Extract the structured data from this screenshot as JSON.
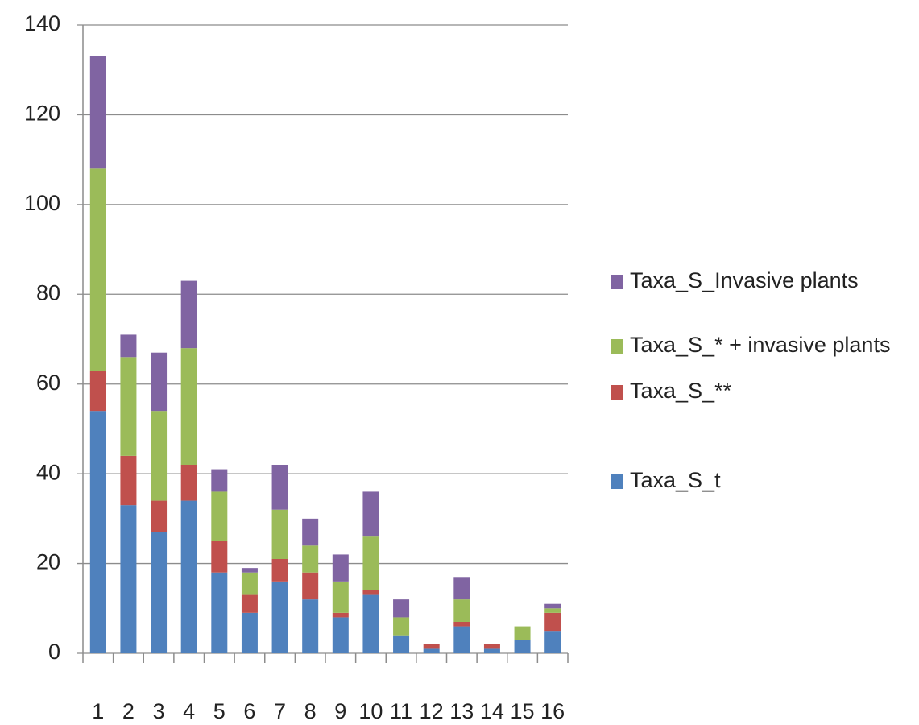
{
  "chart_data": {
    "type": "stacked-bar",
    "categories": [
      "1",
      "2",
      "3",
      "4",
      "5",
      "6",
      "7",
      "8",
      "9",
      "10",
      "11",
      "12",
      "13",
      "14",
      "15",
      "16"
    ],
    "series": [
      {
        "name": "Taxa_S_t",
        "color": "#4f81bd",
        "values": [
          54,
          33,
          27,
          34,
          18,
          9,
          16,
          12,
          8,
          13,
          4,
          1,
          6,
          1,
          3,
          5
        ]
      },
      {
        "name": "Taxa_S_**",
        "color": "#c0504d",
        "values": [
          9,
          11,
          7,
          8,
          7,
          4,
          5,
          6,
          1,
          1,
          0,
          1,
          1,
          1,
          0,
          4
        ]
      },
      {
        "name": "Taxa_S_* + invasive plants",
        "color": "#9bbb59",
        "values": [
          45,
          22,
          20,
          26,
          11,
          5,
          11,
          6,
          7,
          12,
          4,
          0,
          5,
          0,
          3,
          1
        ]
      },
      {
        "name": "Taxa_S_Invasive plants",
        "color": "#8064a2",
        "values": [
          25,
          5,
          13,
          15,
          5,
          1,
          10,
          6,
          6,
          10,
          4,
          0,
          5,
          0,
          0,
          1
        ]
      }
    ],
    "ylim": [
      0,
      140
    ],
    "yticks": [
      0,
      20,
      40,
      60,
      80,
      100,
      120,
      140
    ],
    "grid": true,
    "legend": "right"
  }
}
